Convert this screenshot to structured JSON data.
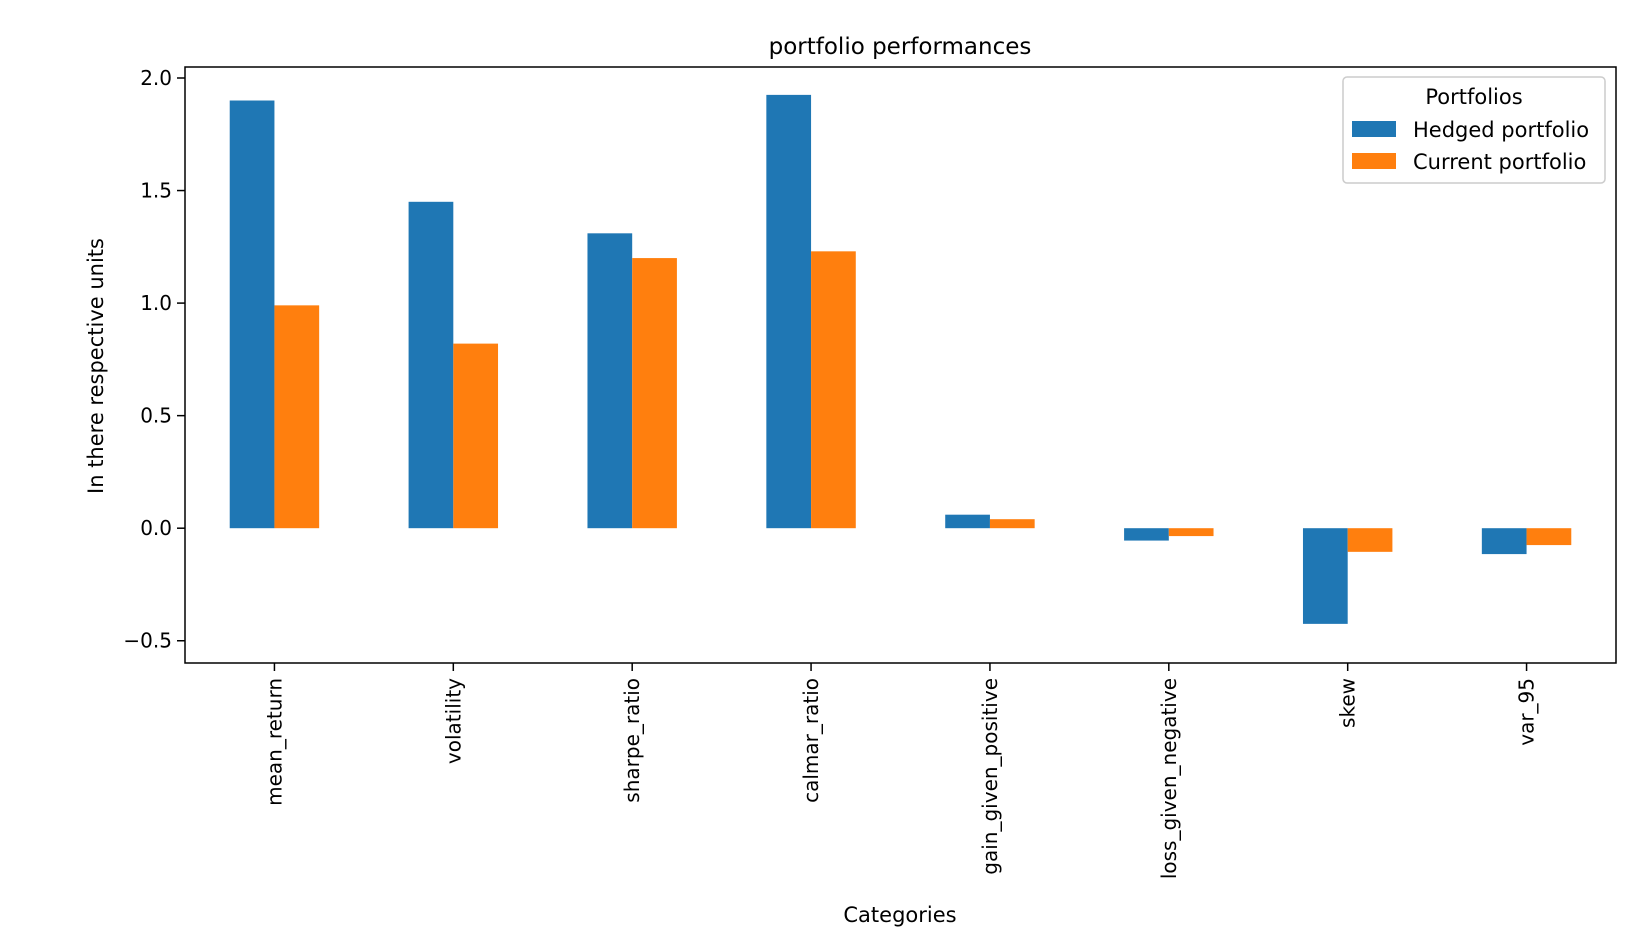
{
  "chart_data": {
    "type": "bar",
    "title": "portfolio performances",
    "xlabel": "Categories",
    "ylabel": "In there respective units",
    "categories": [
      "mean_return",
      "volatility",
      "sharpe_ratio",
      "calmar_ratio",
      "gain_given_positive",
      "loss_given_negative",
      "skew",
      "var_95"
    ],
    "series": [
      {
        "name": "Hedged portfolio",
        "color": "#1f77b4",
        "values": [
          1.9,
          1.45,
          1.31,
          1.925,
          0.06,
          -0.055,
          -0.425,
          -0.115
        ]
      },
      {
        "name": "Current portfolio",
        "color": "#ff7f0e",
        "values": [
          0.99,
          0.82,
          1.2,
          1.23,
          0.04,
          -0.035,
          -0.105,
          -0.075
        ]
      }
    ],
    "ylim": [
      -0.55,
      2.0
    ],
    "yticks": [
      2.0,
      1.5,
      1.0,
      0.5,
      0.0,
      -0.5
    ],
    "ytick_labels": [
      "2.0",
      "1.5",
      "1.0",
      "0.5",
      "0.0",
      "−0.5"
    ],
    "legend": {
      "title": "Portfolios",
      "placement": "top-right"
    },
    "grid": false
  }
}
